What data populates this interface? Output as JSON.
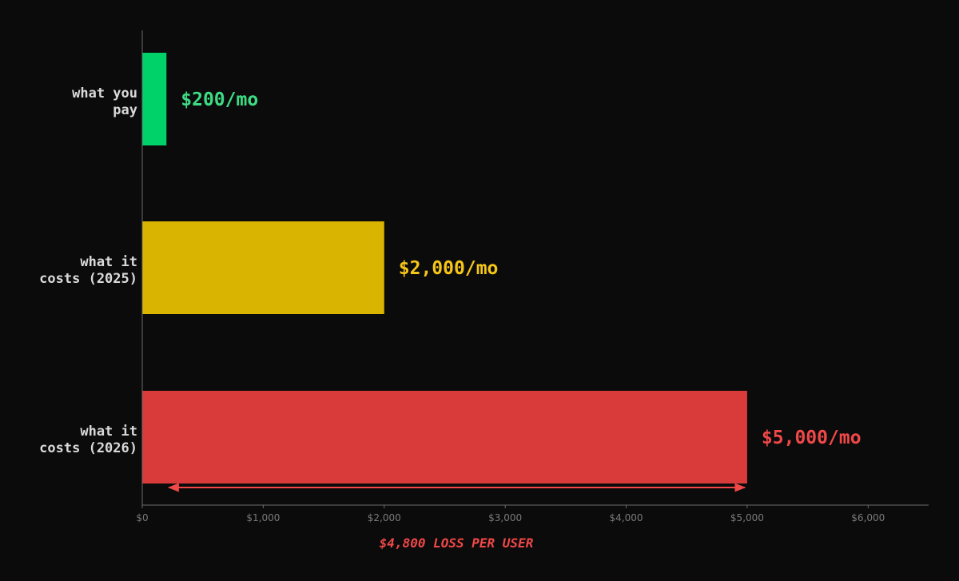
{
  "chart_data": {
    "type": "bar",
    "orientation": "horizontal",
    "categories": [
      [
        "what you",
        "pay"
      ],
      [
        "what it",
        "costs (2025)"
      ],
      [
        "what it",
        "costs (2026)"
      ]
    ],
    "values": [
      200,
      2000,
      5000
    ],
    "value_labels": [
      "$200/mo",
      "$2,000/mo",
      "$5,000/mo"
    ],
    "colors": [
      "#00d26a",
      "#d9b400",
      "#d93b3b"
    ],
    "value_label_colors": [
      "#3ddc84",
      "#f5c518",
      "#f04848"
    ],
    "xlim": [
      0,
      6500
    ],
    "xticks": [
      0,
      1000,
      2000,
      3000,
      4000,
      5000,
      6000
    ],
    "xtick_labels": [
      "$0",
      "$1,000",
      "$2,000",
      "$3,000",
      "$4,000",
      "$5,000",
      "$6,000"
    ],
    "grid": false,
    "annotation": {
      "text": "$4,800 LOSS PER USER",
      "from": 200,
      "to": 5000,
      "color": "#f04848"
    },
    "background": "#0b0b0b",
    "axis_color": "#6b6b6b"
  }
}
